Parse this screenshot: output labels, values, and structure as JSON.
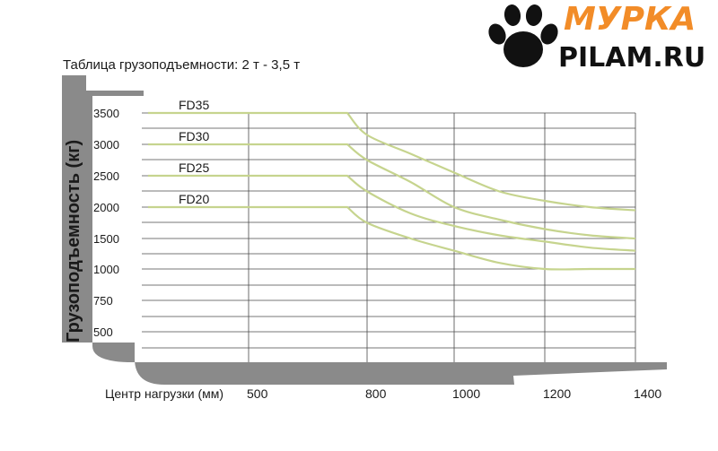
{
  "header": {
    "chart_title": "Таблица грузоподъемности: 2 т - 3,5 т"
  },
  "logo": {
    "line1": "МУРКА",
    "line2": "PILAM.RU",
    "icon": "paw-print-icon"
  },
  "colors": {
    "frame": "#8a8a8a",
    "grid": "#4a4a4a",
    "curve": "#c6d48e",
    "logo_orange": "#f28c28"
  },
  "chart_data": {
    "type": "line",
    "title": "Таблица грузоподъемности: 2 т - 3,5 т",
    "xlabel": "Центр нагрузки (мм)",
    "ylabel": "Грузоподъемность (кг)",
    "x_ticks": [
      500,
      800,
      1000,
      1200,
      1400
    ],
    "y_ticks": [
      500,
      750,
      1000,
      1500,
      2000,
      2500,
      3000,
      3500
    ],
    "grid": true,
    "series": [
      {
        "name": "FD35",
        "points": [
          [
            400,
            3500
          ],
          [
            750,
            3500
          ],
          [
            800,
            3150
          ],
          [
            900,
            2850
          ],
          [
            1000,
            2550
          ],
          [
            1100,
            2250
          ],
          [
            1200,
            2100
          ],
          [
            1300,
            2000
          ],
          [
            1400,
            1950
          ]
        ]
      },
      {
        "name": "FD30",
        "points": [
          [
            400,
            3000
          ],
          [
            750,
            3000
          ],
          [
            800,
            2750
          ],
          [
            900,
            2400
          ],
          [
            1000,
            2000
          ],
          [
            1100,
            1800
          ],
          [
            1200,
            1650
          ],
          [
            1300,
            1550
          ],
          [
            1400,
            1500
          ]
        ]
      },
      {
        "name": "FD25",
        "points": [
          [
            400,
            2500
          ],
          [
            750,
            2500
          ],
          [
            800,
            2250
          ],
          [
            900,
            1900
          ],
          [
            1000,
            1700
          ],
          [
            1100,
            1550
          ],
          [
            1200,
            1450
          ],
          [
            1300,
            1350
          ],
          [
            1400,
            1300
          ]
        ]
      },
      {
        "name": "FD20",
        "points": [
          [
            400,
            2000
          ],
          [
            750,
            2000
          ],
          [
            800,
            1750
          ],
          [
            900,
            1500
          ],
          [
            1000,
            1300
          ],
          [
            1100,
            1100
          ],
          [
            1200,
            1000
          ],
          [
            1300,
            1000
          ],
          [
            1400,
            1000
          ]
        ]
      }
    ]
  }
}
